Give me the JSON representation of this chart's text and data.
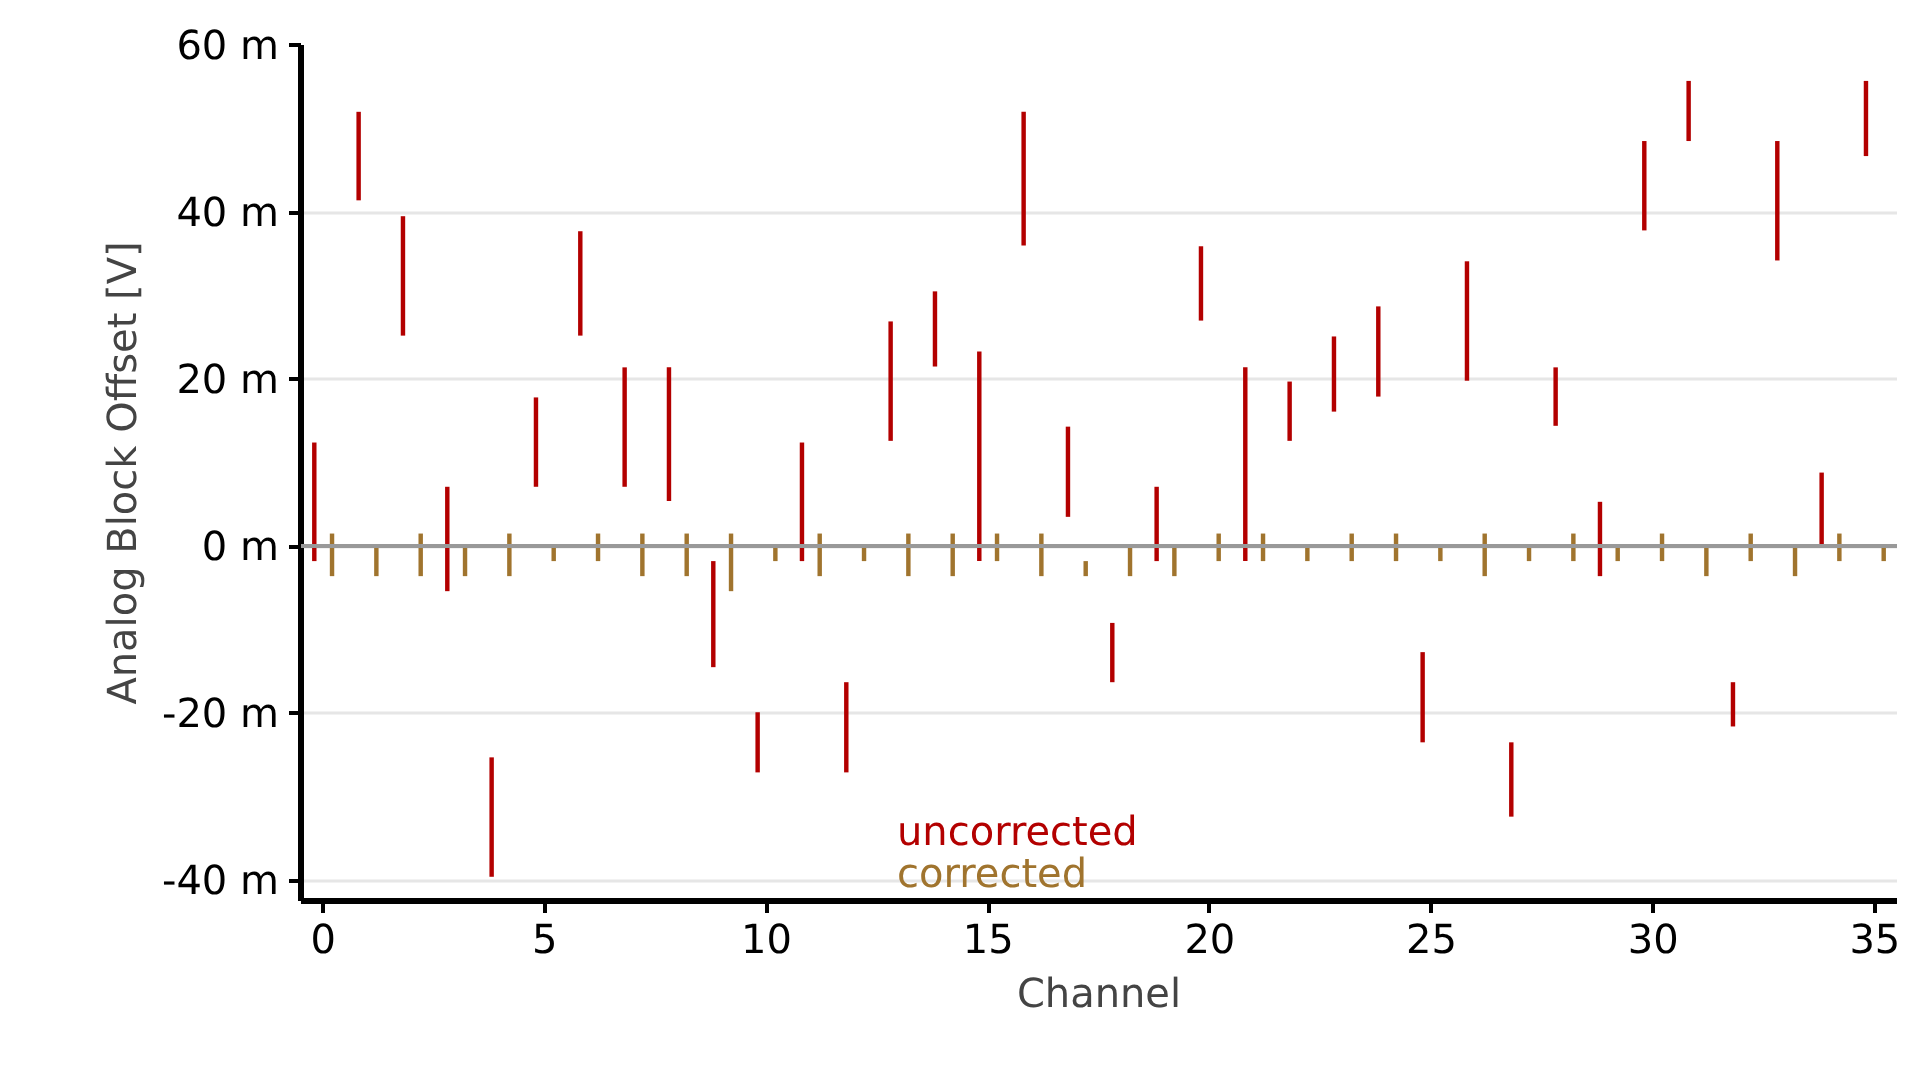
{
  "chart_data": {
    "type": "bar",
    "xlabel": "Channel",
    "ylabel": "Analog Block Offset [V]",
    "xlim": [
      -0.5,
      35.5
    ],
    "xticks": [
      0,
      5,
      10,
      15,
      20,
      25,
      30,
      35
    ],
    "ylim": [
      -42.5,
      60
    ],
    "yticks": [
      {
        "value": -40,
        "label": "-40 m"
      },
      {
        "value": -20,
        "label": "-20 m"
      },
      {
        "value": 0,
        "label": "0 m"
      },
      {
        "value": 20,
        "label": "20 m"
      },
      {
        "value": 40,
        "label": "40 m"
      },
      {
        "value": 60,
        "label": "60 m"
      }
    ],
    "grid": "y",
    "legend": "bottom",
    "ref_lines": [
      {
        "axis": "y",
        "value": 0,
        "label": null,
        "color": "#999999"
      }
    ],
    "series": [
      {
        "name": "uncorrected",
        "color": "#b30000",
        "x": [
          -0.2,
          0.8,
          1.8,
          2.8,
          3.8,
          4.8,
          5.8,
          6.8,
          7.8,
          8.8,
          9.8,
          10.8,
          11.8,
          12.8,
          13.8,
          14.8,
          15.8,
          16.8,
          17.8,
          18.8,
          19.8,
          20.8,
          21.8,
          22.8,
          23.8,
          24.8,
          25.8,
          26.8,
          27.8,
          28.8,
          29.8,
          30.8,
          31.8,
          32.8,
          33.8,
          34.8
        ],
        "base": [
          -1.8,
          41.4,
          25.2,
          -5.4,
          -39.6,
          7.1,
          25.2,
          7.1,
          5.4,
          -14.5,
          -27.1,
          -1.8,
          -27.1,
          12.6,
          21.5,
          -1.8,
          36.0,
          3.5,
          -16.3,
          -1.8,
          27.0,
          -1.8,
          12.6,
          16.1,
          17.9,
          -23.5,
          19.8,
          -32.4,
          14.4,
          -3.6,
          37.8,
          48.5,
          -21.6,
          34.2,
          0,
          46.7
        ],
        "values": [
          14.2,
          10.6,
          14.3,
          12.5,
          14.3,
          10.7,
          12.5,
          14.3,
          16.0,
          12.7,
          7.2,
          14.2,
          10.8,
          14.3,
          9.0,
          25.1,
          16.0,
          10.8,
          7.1,
          8.9,
          8.9,
          23.2,
          7.1,
          9.0,
          10.8,
          10.8,
          14.3,
          8.9,
          7.0,
          8.9,
          10.7,
          7.2,
          5.3,
          14.3,
          8.8,
          9.0
        ]
      },
      {
        "name": "corrected",
        "color": "#a0742e",
        "x": [
          0.2,
          1.2,
          2.2,
          3.2,
          4.2,
          5.2,
          6.2,
          7.2,
          8.2,
          9.2,
          10.2,
          11.2,
          12.2,
          13.2,
          14.2,
          15.2,
          16.2,
          17.2,
          18.2,
          19.2,
          20.2,
          21.2,
          22.2,
          23.2,
          24.2,
          25.2,
          26.2,
          27.2,
          28.2,
          29.2,
          30.2,
          31.2,
          32.2,
          33.2,
          34.2,
          35.2
        ],
        "base": [
          -3.6,
          -3.6,
          -3.6,
          -3.6,
          -3.6,
          -1.8,
          -1.8,
          -3.6,
          -3.6,
          -5.4,
          -1.8,
          -3.6,
          -1.8,
          -3.6,
          -3.6,
          -1.8,
          -3.6,
          -3.6,
          -3.6,
          -3.6,
          -1.8,
          -1.8,
          -1.8,
          -1.8,
          -1.8,
          -1.8,
          -3.6,
          -1.8,
          -1.8,
          -1.8,
          -1.8,
          -3.6,
          -1.8,
          -3.6,
          -1.8,
          -1.8
        ],
        "values": [
          5.1,
          3.6,
          5.1,
          3.6,
          5.1,
          1.8,
          3.3,
          5.1,
          5.1,
          6.9,
          1.8,
          5.1,
          1.8,
          5.1,
          5.1,
          3.3,
          5.1,
          1.8,
          3.6,
          3.6,
          3.3,
          3.3,
          1.8,
          3.3,
          3.3,
          1.8,
          5.1,
          1.8,
          3.3,
          1.8,
          3.3,
          3.6,
          3.3,
          3.6,
          3.3,
          1.8
        ]
      }
    ]
  }
}
